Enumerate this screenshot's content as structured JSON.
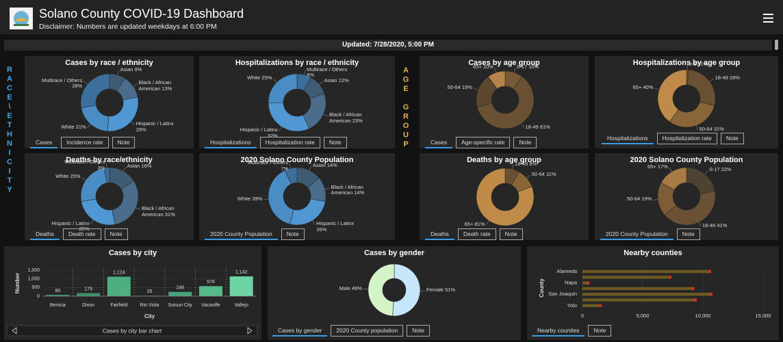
{
  "header": {
    "title": "Solano County COVID-19 Dashboard",
    "disclaimer": "Disclaimer: Numbers are updated weekdays at 6:00 PM"
  },
  "updated": "Updated: 7/28/2020, 5:00 PM",
  "side_labels": [
    "RACE\\ETHNICITY",
    "AGE GROUP"
  ],
  "chart_data": [
    {
      "type": "donut",
      "title": "Cases by race / ethnicity",
      "categories": [
        "Asian",
        "Black / African American",
        "Hispanic / Latinx",
        "White",
        "Multirace / Others"
      ],
      "values": [
        9,
        13,
        29,
        21,
        28
      ],
      "value_labels": [
        "9%",
        "13%",
        "29%",
        "21%",
        "28%"
      ],
      "colors": [
        "#3f5c75",
        "#4a6d8c",
        "#4f98d4",
        "#4a8cc4",
        "#3d6f9c"
      ],
      "tabs": [
        "Cases",
        "Incidence rate",
        "Note"
      ]
    },
    {
      "type": "donut",
      "title": "Hospitalizations by race / ethnicity",
      "categories": [
        "Multirace / Others",
        "Asian",
        "Black / African American",
        "Hispanic / Latinx",
        "White"
      ],
      "values": [
        8,
        12,
        23,
        32,
        25
      ],
      "value_labels": [
        "8%",
        "12%",
        "23%",
        "32%",
        "25%"
      ],
      "colors": [
        "#3d6f9c",
        "#3f5c75",
        "#4a6d8c",
        "#4f98d4",
        "#4a8cc4"
      ],
      "tabs": [
        "Hospitalizations",
        "Hospitalization rate",
        "Note"
      ]
    },
    {
      "type": "donut",
      "title": "Deaths by race/ethnicity",
      "categories": [
        "Asian",
        "Black / African American",
        "Hispanic / Latinx",
        "White",
        "Multirace / Others"
      ],
      "values": [
        16,
        31,
        25,
        25,
        3
      ],
      "value_labels": [
        "16%",
        "31%",
        "25%",
        "25%",
        "3%"
      ],
      "colors": [
        "#3f5c75",
        "#4a6d8c",
        "#4f98d4",
        "#4a8cc4",
        "#3d6f9c"
      ],
      "tabs": [
        "Deaths",
        "Death rate",
        "Note"
      ]
    },
    {
      "type": "donut",
      "title": "2020 Solano County Population",
      "categories": [
        "Asian",
        "Black / African American",
        "Hispanic / Latinx",
        "White",
        "Multirace / Others"
      ],
      "values": [
        14,
        14,
        26,
        39,
        7
      ],
      "value_labels": [
        "14%",
        "14%",
        "26%",
        "39%",
        "7%"
      ],
      "colors": [
        "#3f5c75",
        "#4a6d8c",
        "#4f98d4",
        "#4a8cc4",
        "#3d6f9c"
      ],
      "tabs": [
        "2020 County Population",
        "Note"
      ]
    },
    {
      "type": "donut",
      "title": "Cases by age group",
      "categories": [
        "0-17",
        "18-49",
        "50-64",
        "65+"
      ],
      "values": [
        10,
        61,
        19,
        10
      ],
      "value_labels": [
        "10%",
        "61%",
        "19%",
        "10%"
      ],
      "colors": [
        "#7a5a34",
        "#6a5134",
        "#5c4731",
        "#b5844a"
      ],
      "tabs": [
        "Cases",
        "Age-specific rate",
        "Note"
      ]
    },
    {
      "type": "donut",
      "title": "Hospitalizations by age group",
      "categories": [
        "0-17",
        "18-49",
        "50-64",
        "65+"
      ],
      "values": [
        1,
        28,
        31,
        40
      ],
      "value_labels": [
        "1%",
        "28%",
        "31%",
        "40%"
      ],
      "colors": [
        "#7a5a34",
        "#6a5134",
        "#8a6538",
        "#c08b48"
      ],
      "tabs": [
        "Hospitalizations",
        "Hospitalization rate",
        "Note"
      ]
    },
    {
      "type": "donut",
      "title": "Deaths by age group",
      "categories": [
        "18-49",
        "50-64",
        "65+"
      ],
      "values": [
        8,
        11,
        81
      ],
      "value_labels": [
        "8%",
        "11%",
        "81%"
      ],
      "colors": [
        "#6a5134",
        "#8a6538",
        "#c08b48"
      ],
      "tabs": [
        "Deaths",
        "Death rate",
        "Note"
      ]
    },
    {
      "type": "donut",
      "title": "2020 Solano County Population",
      "categories": [
        "0-17",
        "18-49",
        "50-64",
        "65+"
      ],
      "values": [
        22,
        41,
        19,
        17
      ],
      "value_labels": [
        "22%",
        "41%",
        "19%",
        "17%"
      ],
      "colors": [
        "#4f4232",
        "#6a5134",
        "#7d5c36",
        "#a87a44"
      ],
      "tabs": [
        "2020 County Population",
        "Note"
      ]
    },
    {
      "type": "bar",
      "title": "Cases by city",
      "categories": [
        "Benicia",
        "Dixon",
        "Fairfield",
        "Rio Vista",
        "Suisun City",
        "Vacaville",
        "Vallejo"
      ],
      "values": [
        80,
        179,
        1124,
        26,
        248,
        578,
        1142
      ],
      "value_labels": [
        "80",
        "179",
        "1,124",
        "26",
        "248",
        "578",
        "1,142"
      ],
      "colors": [
        "#3b8f68",
        "#3b8f68",
        "#4fae80",
        "#3b8f68",
        "#46a277",
        "#56b98a",
        "#6fd4a4"
      ],
      "ylim": [
        0,
        1500
      ],
      "yticks": [
        0,
        500,
        {
          "value": 1000,
          "label": "1,000"
        },
        {
          "value": 1500,
          "label": "1,500"
        }
      ],
      "ylabel": "Number",
      "xlabel": "City",
      "footer": "Cases by city bar chart"
    },
    {
      "type": "donut",
      "title": "Cases by gender",
      "categories": [
        "Female",
        "Male"
      ],
      "values": [
        51,
        49
      ],
      "value_labels": [
        "51%",
        "49%"
      ],
      "colors": [
        "#c6e6fb",
        "#d4f4c8"
      ],
      "tabs": [
        "Cases by gender",
        "2020 County population",
        "Note"
      ]
    },
    {
      "type": "barh",
      "title": "Nearby counties",
      "categories": [
        "Alameda",
        null,
        "Napa",
        null,
        "San Joaquin",
        null,
        "Yolo"
      ],
      "values": [
        10600,
        7300,
        500,
        9200,
        10700,
        9400,
        1500
      ],
      "color": "#6b5a24",
      "marker_color": "#e02a22",
      "xlim": [
        0,
        15000
      ],
      "xticks": [
        0,
        {
          "value": 5000,
          "label": "5,000"
        },
        {
          "value": 10000,
          "label": "10,000"
        },
        {
          "value": 15000,
          "label": "15,000"
        }
      ],
      "ylabel": "County",
      "tabs": [
        "Nearby counties",
        "Note"
      ]
    }
  ]
}
